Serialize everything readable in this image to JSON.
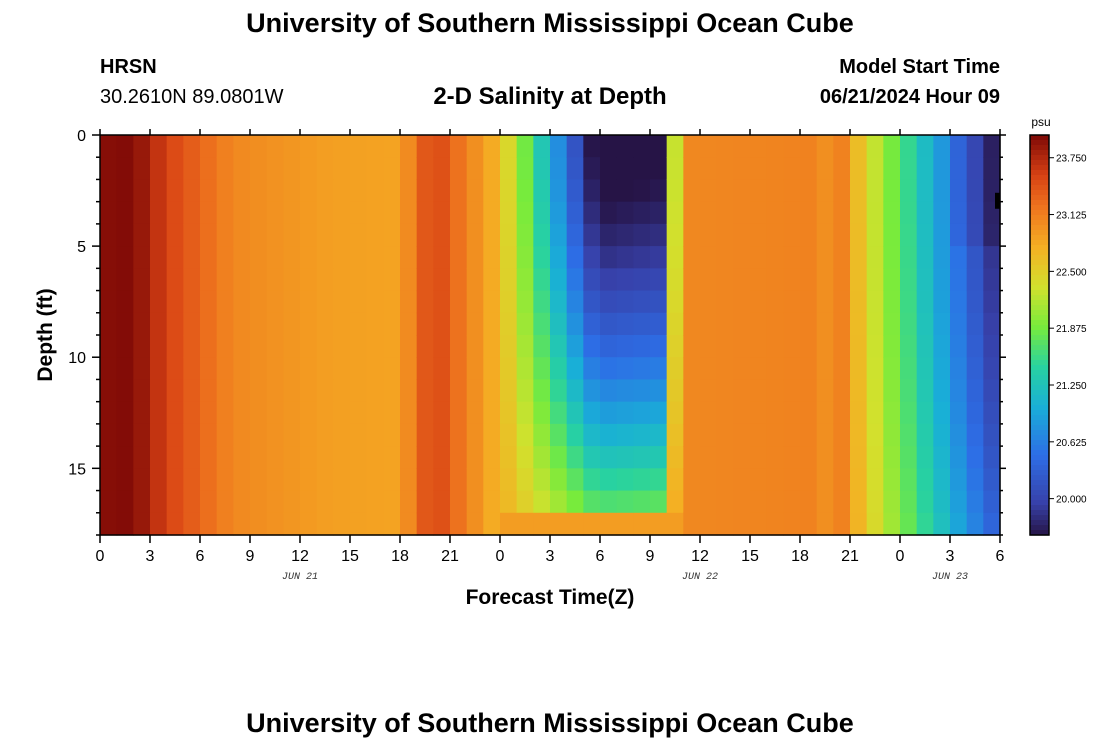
{
  "header": {
    "title": "University of Southern Mississippi Ocean Cube",
    "station": "HRSN",
    "coords": "30.2610N  89.0801W",
    "subtitle": "2-D Salinity at Depth",
    "start_label": "Model Start Time",
    "start_value": "06/21/2024 Hour 09"
  },
  "footer": {
    "title": "University of Southern Mississippi Ocean Cube"
  },
  "chart_data": {
    "type": "heatmap",
    "title": "2-D Salinity at Depth",
    "xlabel": "Forecast Time(Z)",
    "ylabel": "Depth (ft)",
    "xlim": [
      0,
      54
    ],
    "ylim": [
      0,
      18
    ],
    "x_ticks": [
      {
        "value": 0,
        "label": "0"
      },
      {
        "value": 3,
        "label": "3"
      },
      {
        "value": 6,
        "label": "6"
      },
      {
        "value": 9,
        "label": "9"
      },
      {
        "value": 12,
        "label": "12"
      },
      {
        "value": 15,
        "label": "15"
      },
      {
        "value": 18,
        "label": "18"
      },
      {
        "value": 21,
        "label": "21"
      },
      {
        "value": 24,
        "label": "0"
      },
      {
        "value": 27,
        "label": "3"
      },
      {
        "value": 30,
        "label": "6"
      },
      {
        "value": 33,
        "label": "9"
      },
      {
        "value": 36,
        "label": "12"
      },
      {
        "value": 39,
        "label": "15"
      },
      {
        "value": 42,
        "label": "18"
      },
      {
        "value": 45,
        "label": "21"
      },
      {
        "value": 48,
        "label": "0"
      },
      {
        "value": 51,
        "label": "3"
      },
      {
        "value": 54,
        "label": "6"
      }
    ],
    "date_labels": [
      {
        "value": 12,
        "label": "JUN 21"
      },
      {
        "value": 36,
        "label": "JUN 22"
      },
      {
        "value": 51,
        "label": "JUN 23"
      }
    ],
    "y_ticks": [
      0,
      5,
      10,
      15
    ],
    "colorbar": {
      "unit": "psu",
      "min": 19.6,
      "max": 24.0,
      "ticks": [
        "23.750",
        "23.125",
        "22.500",
        "21.875",
        "21.250",
        "20.625",
        "20.000"
      ]
    },
    "grid": {
      "time_step_hours": 1,
      "depth_step_ft": 1,
      "note": "salinity values estimated from colors"
    }
  }
}
